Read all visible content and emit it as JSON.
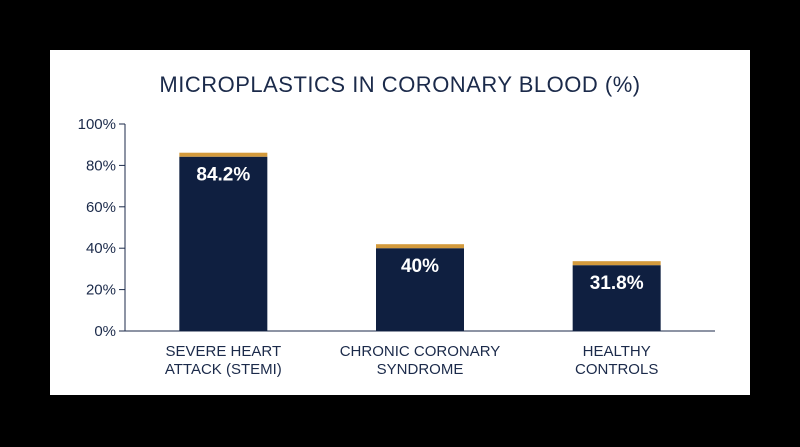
{
  "colors": {
    "bar": "#0f1f40",
    "bar_cap": "#d39a3c",
    "axis": "#1b2a4a",
    "text": "#1b2a4a",
    "background": "#ffffff",
    "border": "#000000"
  },
  "chart_data": {
    "type": "bar",
    "title": "MICROPLASTICS IN CORONARY BLOOD (%)",
    "xlabel": "",
    "ylabel": "",
    "ylim": [
      0,
      100
    ],
    "yticks": [
      {
        "value": 0,
        "label": "0%"
      },
      {
        "value": 20,
        "label": "20%"
      },
      {
        "value": 40,
        "label": "40%"
      },
      {
        "value": 60,
        "label": "60%"
      },
      {
        "value": 80,
        "label": "80%"
      },
      {
        "value": 100,
        "label": "100%"
      }
    ],
    "categories": [
      [
        "SEVERE HEART",
        "ATTACK (STEMI)"
      ],
      [
        "CHRONIC CORONARY",
        "SYNDROME"
      ],
      [
        "HEALTHY",
        "CONTROLS"
      ]
    ],
    "values": [
      84.2,
      40,
      31.8
    ],
    "value_labels": [
      "84.2%",
      "40%",
      "31.8%"
    ],
    "grid": false,
    "legend": "none"
  }
}
